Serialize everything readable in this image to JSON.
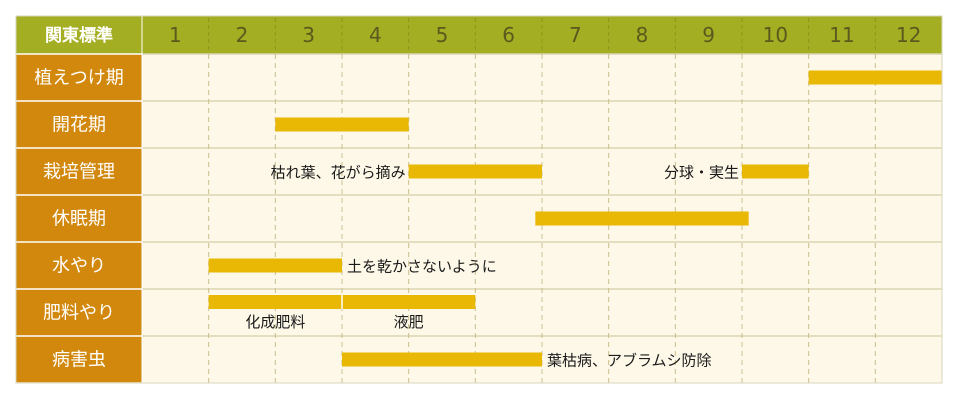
{
  "chart_data": {
    "type": "gantt",
    "corner_label": "関東標準",
    "months": [
      "1",
      "2",
      "3",
      "4",
      "5",
      "6",
      "7",
      "8",
      "9",
      "10",
      "11",
      "12"
    ],
    "rows": [
      {
        "label": "植えつけ期",
        "bars": [
          {
            "start": 11.0,
            "end": 13.0
          }
        ],
        "notes": []
      },
      {
        "label": "開花期",
        "bars": [
          {
            "start": 3.0,
            "end": 5.0
          }
        ],
        "notes": []
      },
      {
        "label": "栽培管理",
        "bars": [
          {
            "start": 5.0,
            "end": 7.0
          },
          {
            "start": 10.0,
            "end": 11.0
          }
        ],
        "notes": [
          {
            "text": "枯れ葉、花がら摘み",
            "at": 5.0,
            "side": "left"
          },
          {
            "text": "分球・実生",
            "at": 10.0,
            "side": "left"
          }
        ]
      },
      {
        "label": "休眠期",
        "bars": [
          {
            "start": 6.9,
            "end": 10.1
          }
        ],
        "notes": []
      },
      {
        "label": "水やり",
        "bars": [
          {
            "start": 2.0,
            "end": 4.0
          }
        ],
        "notes": [
          {
            "text": "土を乾かさないように",
            "at": 4.0,
            "side": "right"
          }
        ]
      },
      {
        "label": "肥料やり",
        "bars": [
          {
            "start": 2.0,
            "end": 4.0
          },
          {
            "start": 4.0,
            "end": 6.0
          }
        ],
        "notes": [
          {
            "text": "化成肥料",
            "at": 3.0,
            "side": "below"
          },
          {
            "text": "液肥",
            "at": 5.0,
            "side": "below"
          }
        ]
      },
      {
        "label": "病害虫",
        "bars": [
          {
            "start": 4.0,
            "end": 7.0
          }
        ],
        "notes": [
          {
            "text": "葉枯病、アブラムシ防除",
            "at": 7.0,
            "side": "right"
          }
        ]
      }
    ],
    "colors": {
      "header": "#a4ae22",
      "row_label": "#d2880c",
      "cell": "#fdf8e8",
      "bar": "#e9b804",
      "grid": "#cbbf8b"
    }
  }
}
